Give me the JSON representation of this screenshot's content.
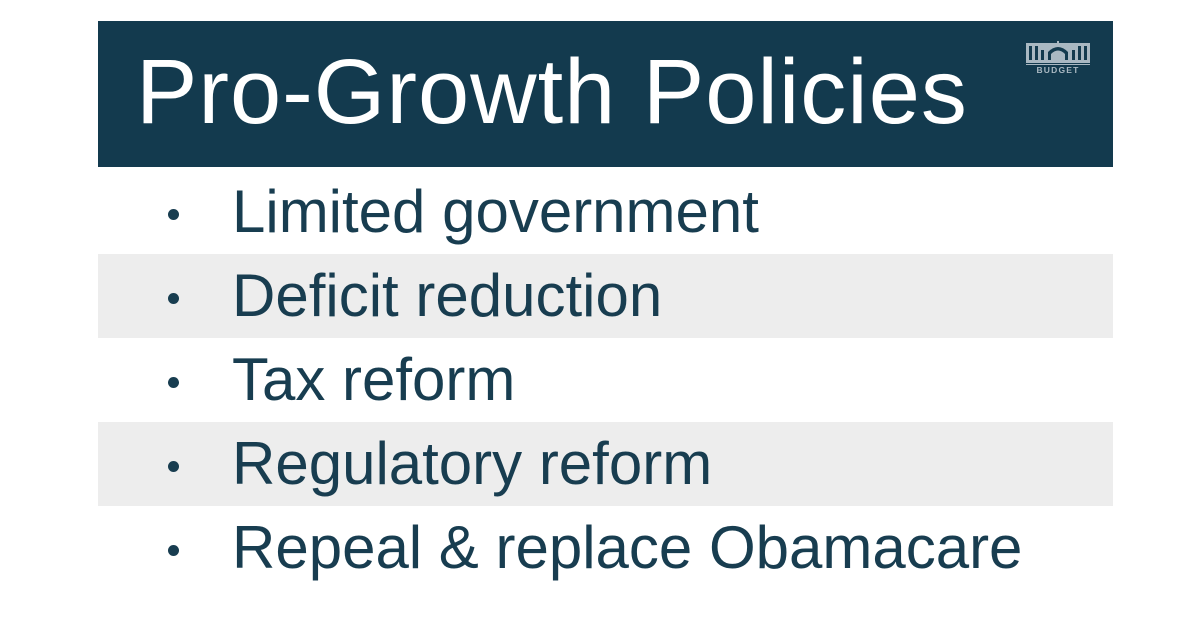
{
  "title": "Pro-Growth Policies",
  "logo": {
    "label": "BUDGET",
    "icon": "capitol-building-icon"
  },
  "items": [
    {
      "label": "Limited government"
    },
    {
      "label": "Deficit reduction"
    },
    {
      "label": "Tax reform"
    },
    {
      "label": "Regulatory reform"
    },
    {
      "label": "Repeal & replace Obamacare"
    }
  ],
  "colors": {
    "title_bar": "#133a4e",
    "title_text": "#ffffff",
    "body_text": "#183d50",
    "row_shade": "#ededed",
    "logo": "#a9b8c2"
  }
}
